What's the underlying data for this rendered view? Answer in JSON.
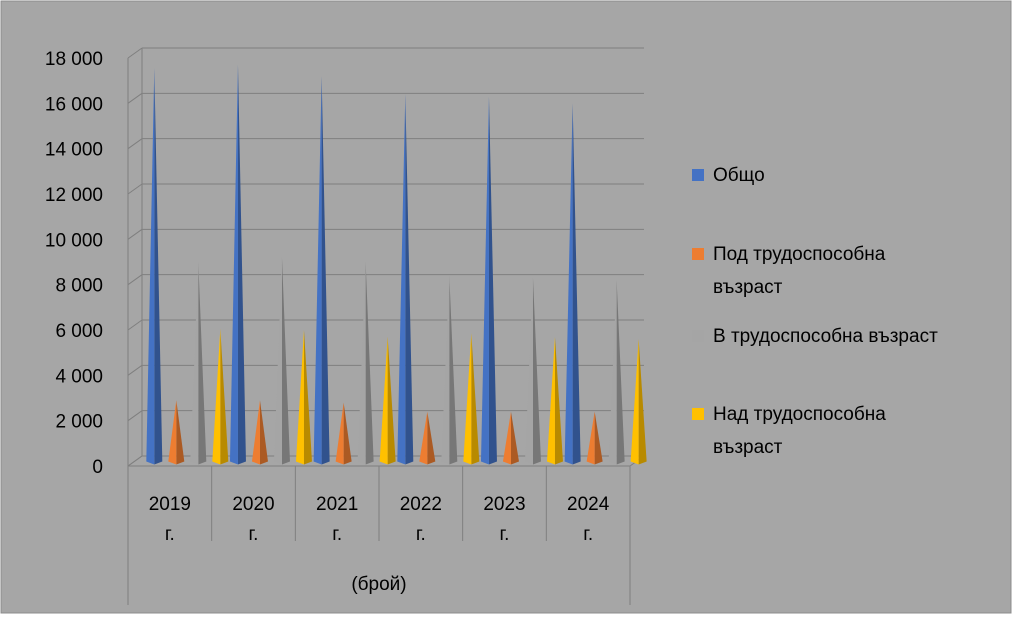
{
  "chart_data": {
    "type": "bar",
    "title": "",
    "xlabel": "(брой)",
    "ylabel": "",
    "categories": [
      "2019 г.",
      "2020 г.",
      "2021 г.",
      "2022 г.",
      "2023 г.",
      "2024 г."
    ],
    "category_lines": [
      [
        "2019",
        "г."
      ],
      [
        "2020",
        "г."
      ],
      [
        "2021",
        "г."
      ],
      [
        "2022",
        "г."
      ],
      [
        "2023",
        "г."
      ],
      [
        "2024",
        "г."
      ]
    ],
    "y_ticks": [
      "18 000",
      "16 000",
      "14 000",
      "12 000",
      "10 000",
      "8 000",
      "6 000",
      "4 000",
      "2 000",
      "0"
    ],
    "ylim": [
      0,
      18000
    ],
    "series": [
      {
        "name": "Общо",
        "color": "#4472C4",
        "values": [
          17350,
          17500,
          17000,
          16200,
          16100,
          15800
        ]
      },
      {
        "name": "Под трудоспособна възраст",
        "color": "#ED7D31",
        "values": [
          2700,
          2700,
          2600,
          2200,
          2200,
          2200
        ]
      },
      {
        "name": "В трудоспособна възраст",
        "color": "#A5A5A5",
        "values": [
          8800,
          9000,
          8800,
          8200,
          8100,
          8000
        ]
      },
      {
        "name": "Над трудоспособна възраст",
        "color": "#FFC000",
        "values": [
          5850,
          5800,
          5500,
          5650,
          5500,
          5400
        ]
      }
    ],
    "legend_lines": [
      [
        "Общо"
      ],
      [
        "Под трудоспособна",
        "възраст"
      ],
      [
        "В трудоспособна възраст"
      ],
      [
        "Над трудоспособна",
        "възраст"
      ]
    ],
    "legend_position": "right",
    "grid": true,
    "background": "#A6A6A6",
    "marker_shape": "cone"
  }
}
